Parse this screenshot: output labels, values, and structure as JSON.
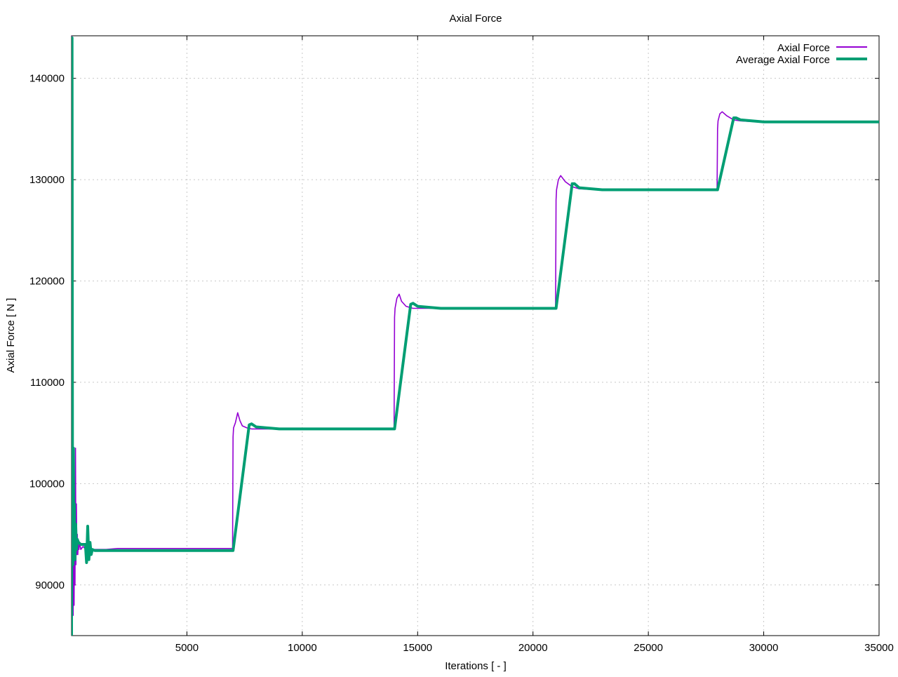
{
  "chart_data": {
    "type": "line",
    "title": "Axial Force",
    "xlabel": "Iterations [ - ]",
    "ylabel": "Axial Force [ N ]",
    "xlim": [
      0,
      35000
    ],
    "ylim": [
      85000,
      144200
    ],
    "xticks": [
      5000,
      10000,
      15000,
      20000,
      25000,
      30000,
      35000
    ],
    "xtick_labels": [
      "5000",
      "10000",
      "15000",
      "20000",
      "25000",
      "30000",
      "35000"
    ],
    "yticks": [
      90000,
      100000,
      110000,
      120000,
      130000,
      140000
    ],
    "ytick_labels": [
      "90000",
      "100000",
      "110000",
      "120000",
      "130000",
      "140000"
    ],
    "grid": true,
    "legend_position": "top-right",
    "series": [
      {
        "name": "Axial Force",
        "color": "#9400d3",
        "x": [
          0,
          30,
          50,
          70,
          90,
          110,
          130,
          150,
          170,
          190,
          210,
          230,
          250,
          270,
          290,
          320,
          350,
          400,
          500,
          700,
          1000,
          1500,
          2000,
          2800,
          3000,
          4000,
          5000,
          6000,
          6980,
          7000,
          7020,
          7100,
          7200,
          7300,
          7400,
          7600,
          7800,
          8000,
          9000,
          10000,
          12000,
          13980,
          14000,
          14020,
          14100,
          14200,
          14300,
          14500,
          14800,
          15000,
          16000,
          18000,
          20980,
          21000,
          21020,
          21100,
          21200,
          21400,
          21700,
          22000,
          22800,
          25000,
          27980,
          28000,
          28020,
          28100,
          28200,
          28400,
          28700,
          29000,
          29800,
          32000,
          35000
        ],
        "y": [
          144200,
          85000,
          110000,
          87000,
          103000,
          88000,
          98000,
          90000,
          103500,
          92000,
          98000,
          93000,
          95000,
          93000,
          94000,
          93500,
          94200,
          93500,
          93800,
          93300,
          93500,
          93500,
          93600,
          93600,
          93600,
          93600,
          93600,
          93600,
          93600,
          104600,
          105500,
          106000,
          107000,
          106200,
          105700,
          105500,
          105400,
          105400,
          105400,
          105400,
          105400,
          105400,
          116400,
          117300,
          118300,
          118700,
          118000,
          117500,
          117300,
          117300,
          117300,
          117300,
          117300,
          128000,
          129000,
          130000,
          130400,
          129800,
          129300,
          129100,
          129000,
          129000,
          129000,
          135000,
          135800,
          136500,
          136700,
          136300,
          135900,
          135800,
          135700,
          135700,
          135700
        ]
      },
      {
        "name": "Average Axial Force",
        "color": "#009e73",
        "x": [
          0,
          20,
          40,
          60,
          80,
          100,
          120,
          150,
          180,
          210,
          250,
          300,
          400,
          600,
          650,
          700,
          750,
          800,
          850,
          900,
          1000,
          2000,
          3000,
          5000,
          7000,
          7700,
          7800,
          8000,
          9000,
          10000,
          14000,
          14700,
          14800,
          15000,
          16000,
          21000,
          21700,
          21800,
          22000,
          23000,
          28000,
          28700,
          28800,
          29000,
          30000,
          35000
        ],
        "y": [
          85000,
          144000,
          103000,
          92000,
          103500,
          93000,
          98000,
          92500,
          96000,
          93500,
          94500,
          94200,
          94000,
          94000,
          92200,
          95800,
          92500,
          94200,
          93000,
          93500,
          93400,
          93400,
          93400,
          93400,
          93400,
          105800,
          105900,
          105600,
          105400,
          105400,
          105400,
          117700,
          117800,
          117500,
          117300,
          117300,
          129600,
          129600,
          129200,
          129000,
          129000,
          136100,
          136100,
          135900,
          135700,
          135700
        ]
      }
    ]
  }
}
